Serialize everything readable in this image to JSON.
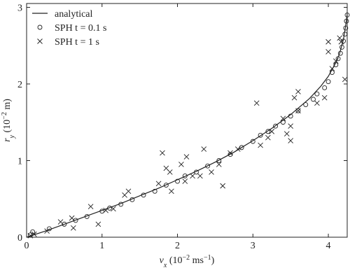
{
  "chart_data": {
    "type": "scatter",
    "xlabel": [
      "v",
      "x",
      " (10",
      "−2",
      " ms",
      "−1",
      ")"
    ],
    "ylabel": [
      "r",
      "y",
      " (10",
      "−2",
      " m)"
    ],
    "xlim": [
      0,
      4.25
    ],
    "ylim": [
      0,
      3.05
    ],
    "xticks": [
      0,
      1,
      2,
      3,
      4
    ],
    "yticks": [
      0,
      1,
      2,
      3
    ],
    "legend": "upper left",
    "series": [
      {
        "name": "analytical",
        "type": "line",
        "color": "#222222",
        "x": [
          0,
          0.25,
          0.5,
          0.75,
          1,
          1.25,
          1.5,
          1.75,
          2,
          2.25,
          2.5,
          2.75,
          3,
          3.25,
          3.5,
          3.75,
          3.9,
          4,
          4.1,
          4.15,
          4.2,
          4.22,
          4.24,
          4.25
        ],
        "y": [
          0,
          0.08,
          0.17,
          0.26,
          0.35,
          0.44,
          0.54,
          0.64,
          0.75,
          0.86,
          0.98,
          1.11,
          1.26,
          1.42,
          1.6,
          1.81,
          1.97,
          2.1,
          2.28,
          2.4,
          2.58,
          2.7,
          2.83,
          2.92
        ]
      },
      {
        "name": "SPH t = 0.1 s",
        "type": "circle",
        "color": "#222222",
        "x": [
          0.05,
          0.08,
          0.3,
          0.5,
          0.65,
          0.8,
          1.0,
          1.1,
          1.25,
          1.4,
          1.55,
          1.7,
          1.85,
          2.0,
          2.1,
          2.25,
          2.4,
          2.55,
          2.7,
          2.85,
          3.0,
          3.1,
          3.2,
          3.3,
          3.4,
          3.5,
          3.6,
          3.7,
          3.8,
          3.85,
          3.95,
          4.0,
          4.05,
          4.1,
          4.13,
          4.16,
          4.18,
          4.2,
          4.22,
          4.23,
          4.24,
          4.25
        ],
        "y": [
          0.03,
          0.07,
          0.11,
          0.17,
          0.22,
          0.27,
          0.34,
          0.38,
          0.43,
          0.49,
          0.55,
          0.6,
          0.68,
          0.73,
          0.8,
          0.85,
          0.93,
          1.0,
          1.08,
          1.17,
          1.25,
          1.33,
          1.38,
          1.45,
          1.5,
          1.58,
          1.65,
          1.73,
          1.8,
          1.87,
          1.95,
          2.03,
          2.15,
          2.25,
          2.33,
          2.4,
          2.48,
          2.56,
          2.65,
          2.73,
          2.82,
          2.9
        ]
      },
      {
        "name": "SPH t = 1 s",
        "type": "cross",
        "color": "#222222",
        "x": [
          0.05,
          0.1,
          0.27,
          0.45,
          0.6,
          0.62,
          0.85,
          0.95,
          1.05,
          1.15,
          1.3,
          1.35,
          1.75,
          1.8,
          1.85,
          1.9,
          1.92,
          2.05,
          2.12,
          2.1,
          2.2,
          2.3,
          2.35,
          2.45,
          2.55,
          2.6,
          2.7,
          2.8,
          3.05,
          3.1,
          3.2,
          3.25,
          3.4,
          3.45,
          3.5,
          3.5,
          3.55,
          3.6,
          3.6,
          3.85,
          3.95,
          4.0,
          4.0,
          4.05,
          4.1,
          4.15,
          4.17,
          4.22
        ],
        "y": [
          0.02,
          0.04,
          0.08,
          0.2,
          0.25,
          0.12,
          0.4,
          0.17,
          0.35,
          0.37,
          0.55,
          0.6,
          0.7,
          1.1,
          0.9,
          0.85,
          0.6,
          0.95,
          1.05,
          0.73,
          0.8,
          0.8,
          1.15,
          0.85,
          0.95,
          0.67,
          1.1,
          1.15,
          1.75,
          1.2,
          1.3,
          1.38,
          1.55,
          1.35,
          1.45,
          1.26,
          1.82,
          1.65,
          1.9,
          1.75,
          1.82,
          2.42,
          2.55,
          2.2,
          2.3,
          2.6,
          2.55,
          2.06
        ]
      }
    ]
  }
}
